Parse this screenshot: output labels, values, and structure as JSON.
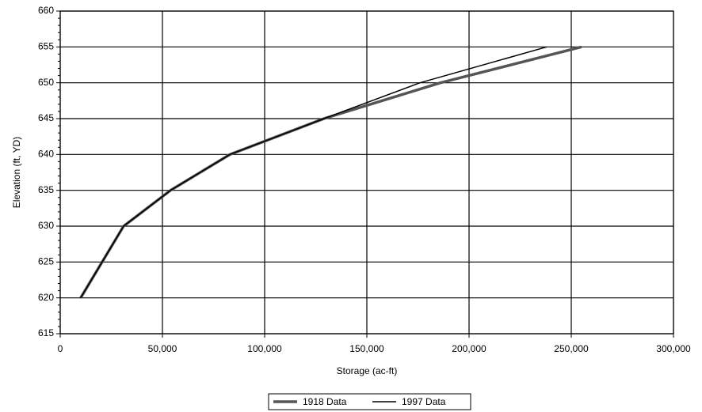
{
  "chart_data": {
    "type": "line",
    "x_label": "Storage (ac-ft)",
    "y_label": "Elevation (ft, YD)",
    "series": [
      {
        "name": "1918 Data",
        "color": "#555555",
        "line_width": 3.5,
        "x": [
          10000,
          31000,
          54000,
          83000,
          129000,
          186000,
          255000
        ],
        "values": [
          620,
          630,
          635,
          640,
          645,
          650,
          655
        ]
      },
      {
        "name": "1997 Data",
        "color": "#000000",
        "line_width": 1.5,
        "x": [
          10000,
          31000,
          54000,
          83000,
          129000,
          176000,
          238000
        ],
        "values": [
          620,
          630,
          635,
          640,
          645,
          650,
          655
        ]
      }
    ],
    "xlim": [
      0,
      300000
    ],
    "xticks": [
      0,
      {
        "value": 50000,
        "label": "50,000"
      },
      {
        "value": 100000,
        "label": "100,000"
      },
      {
        "value": 150000,
        "label": "150,000"
      },
      {
        "value": 200000,
        "label": "200,000"
      },
      {
        "value": 250000,
        "label": "250,000"
      },
      {
        "value": 300000,
        "label": "300,000"
      }
    ],
    "ylim": [
      615,
      660
    ],
    "yticks": [
      615,
      620,
      625,
      630,
      635,
      640,
      645,
      650,
      655,
      660
    ],
    "grid": true,
    "legend": "bottom"
  }
}
